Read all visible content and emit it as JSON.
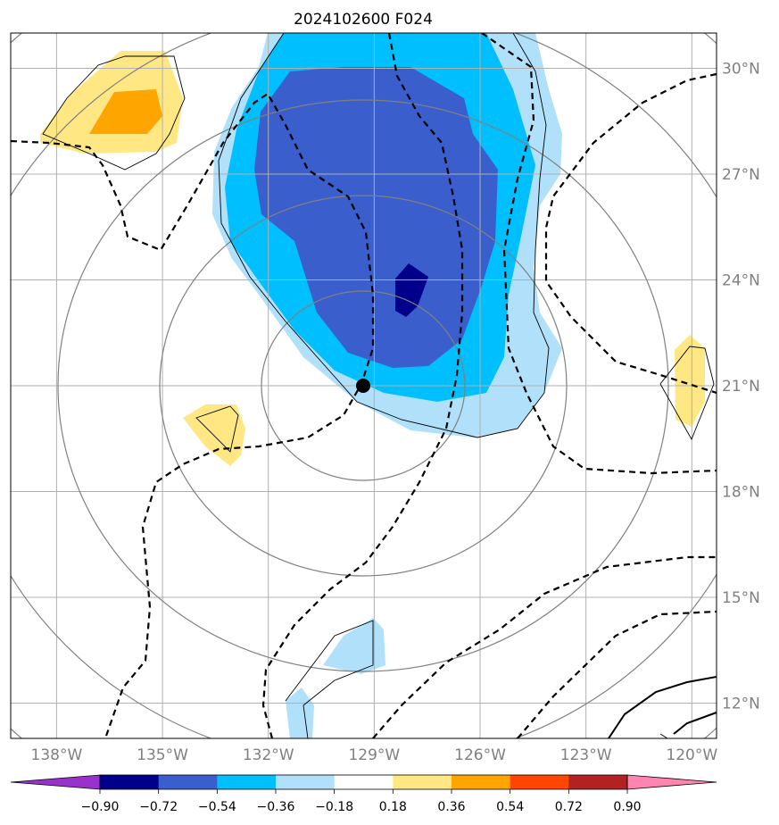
{
  "title": "2024102600 F024",
  "map": {
    "lat_range": [
      11,
      31
    ],
    "lon_range": [
      -139.3,
      -119.3
    ],
    "lat_ticks": [
      {
        "value": 30,
        "label": "30°N"
      },
      {
        "value": 27,
        "label": "27°N"
      },
      {
        "value": 24,
        "label": "24°N"
      },
      {
        "value": 21,
        "label": "21°N"
      },
      {
        "value": 18,
        "label": "18°N"
      },
      {
        "value": 15,
        "label": "15°N"
      },
      {
        "value": 12,
        "label": "12°N"
      }
    ],
    "lon_ticks": [
      {
        "value": -138,
        "label": "138°W"
      },
      {
        "value": -135,
        "label": "135°W"
      },
      {
        "value": -132,
        "label": "132°W"
      },
      {
        "value": -129,
        "label": "129°W"
      },
      {
        "value": -126,
        "label": "126°W"
      },
      {
        "value": -123,
        "label": "123°W"
      },
      {
        "value": -120,
        "label": "120°W"
      }
    ],
    "storm_center": {
      "lat": 20.9,
      "lon": -129.3
    },
    "range_rings_km": [
      200,
      400,
      600,
      800,
      1000
    ]
  },
  "colorbar": {
    "ticks": [
      "−0.90",
      "−0.72",
      "−0.54",
      "−0.36",
      "−0.18",
      "0.18",
      "0.36",
      "0.54",
      "0.72",
      "0.90"
    ],
    "colors": [
      "#9932cc",
      "#00008b",
      "#3a5fcd",
      "#00bfff",
      "#b0e0fa",
      "#ffffff",
      "#ffe884",
      "#ffa500",
      "#ff4500",
      "#b22222",
      "#ff85b0"
    ],
    "extend": "both"
  },
  "colors": {
    "gridline": "#b0b0b0",
    "ring": "#808080",
    "tick_label": "#808080",
    "contour": "#000000"
  }
}
